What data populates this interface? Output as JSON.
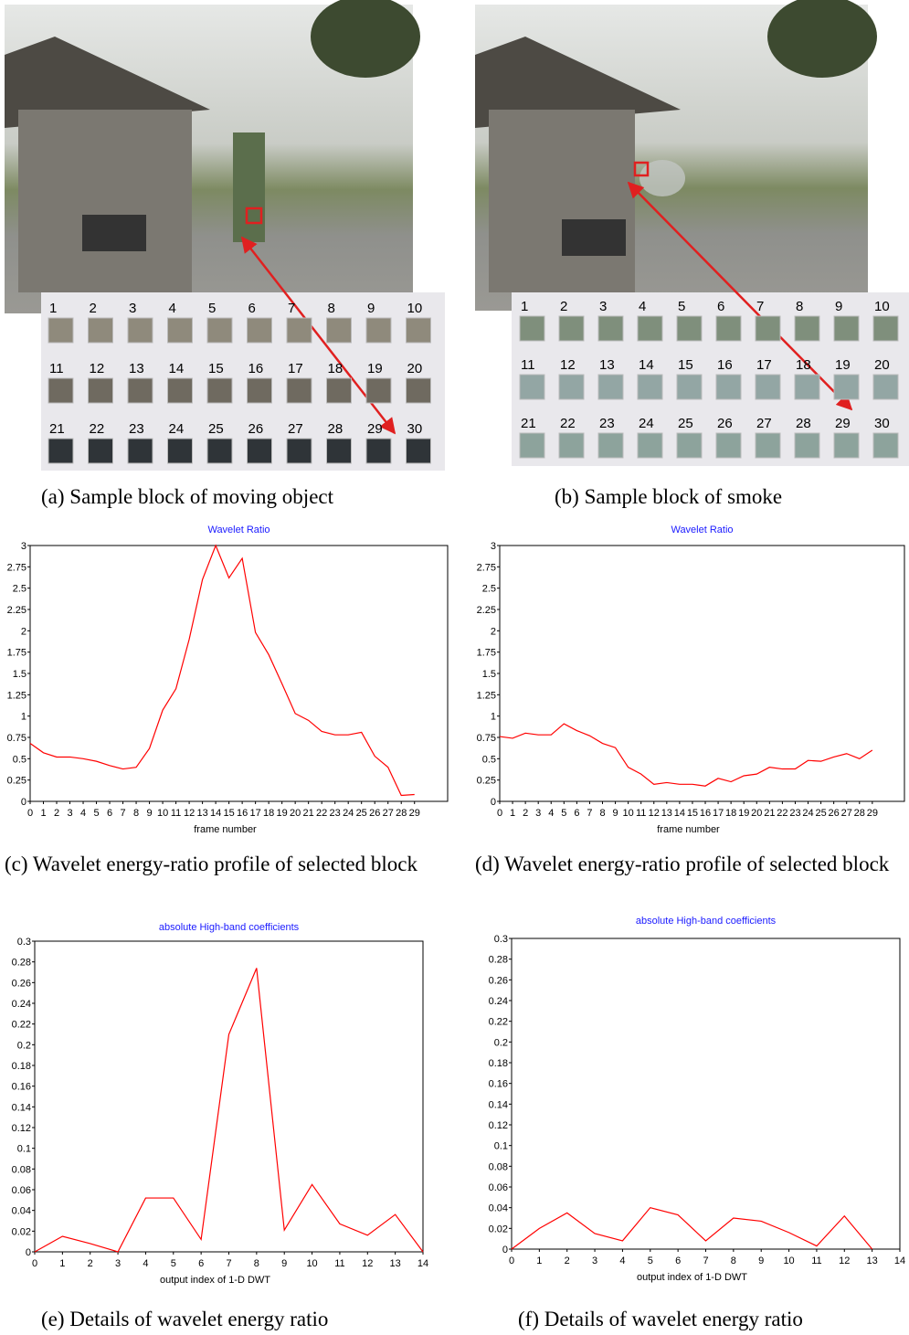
{
  "chart_data": [
    {
      "type": "line",
      "title": "Wavelet Ratio",
      "x_label": "frame number",
      "x": [
        0,
        1,
        2,
        3,
        4,
        5,
        6,
        7,
        8,
        9,
        10,
        11,
        12,
        13,
        14,
        15,
        16,
        17,
        18,
        19,
        20,
        21,
        22,
        23,
        24,
        25,
        26,
        27,
        28,
        29
      ],
      "series": [
        {
          "color": "#ff0000",
          "values": [
            0.68,
            0.57,
            0.52,
            0.52,
            0.5,
            0.47,
            0.42,
            0.38,
            0.4,
            0.62,
            1.07,
            1.32,
            1.9,
            2.6,
            3.0,
            2.62,
            2.85,
            1.98,
            1.72,
            1.38,
            1.03,
            0.95,
            0.82,
            0.78,
            0.78,
            0.81,
            0.53,
            0.4,
            0.07,
            0.08
          ]
        }
      ],
      "xlim": [
        0,
        31.5
      ],
      "xticks": [
        0,
        1,
        2,
        3,
        4,
        5,
        6,
        7,
        8,
        9,
        10,
        11,
        12,
        13,
        14,
        15,
        16,
        17,
        18,
        19,
        20,
        21,
        22,
        23,
        24,
        25,
        26,
        27,
        28,
        29
      ],
      "ylim": [
        0,
        3
      ],
      "yticks": [
        0,
        0.25,
        0.5,
        0.75,
        1,
        1.25,
        1.5,
        1.75,
        2,
        2.25,
        2.5,
        2.75,
        3
      ]
    },
    {
      "type": "line",
      "title": "Wavelet Ratio",
      "x_label": "frame number",
      "x": [
        0,
        1,
        2,
        3,
        4,
        5,
        6,
        7,
        8,
        9,
        10,
        11,
        12,
        13,
        14,
        15,
        16,
        17,
        18,
        19,
        20,
        21,
        22,
        23,
        24,
        25,
        26,
        27,
        28,
        29
      ],
      "series": [
        {
          "color": "#ff0000",
          "values": [
            0.76,
            0.74,
            0.8,
            0.78,
            0.78,
            0.91,
            0.83,
            0.77,
            0.68,
            0.63,
            0.4,
            0.32,
            0.2,
            0.22,
            0.2,
            0.2,
            0.18,
            0.27,
            0.23,
            0.3,
            0.32,
            0.4,
            0.38,
            0.38,
            0.48,
            0.47,
            0.52,
            0.56,
            0.5,
            0.6
          ]
        }
      ],
      "xlim": [
        0,
        31.5
      ],
      "xticks": [
        0,
        1,
        2,
        3,
        4,
        5,
        6,
        7,
        8,
        9,
        10,
        11,
        12,
        13,
        14,
        15,
        16,
        17,
        18,
        19,
        20,
        21,
        22,
        23,
        24,
        25,
        26,
        27,
        28,
        29
      ],
      "ylim": [
        0,
        3
      ],
      "yticks": [
        0,
        0.25,
        0.5,
        0.75,
        1,
        1.25,
        1.5,
        1.75,
        2,
        2.25,
        2.5,
        2.75,
        3
      ]
    },
    {
      "type": "line",
      "title": "absolute High-band coefficients",
      "x_label": "output index of 1-D DWT",
      "x": [
        0,
        1,
        2,
        3,
        4,
        5,
        6,
        7,
        8,
        9,
        10,
        11,
        12,
        13,
        14
      ],
      "series": [
        {
          "color": "#ff0000",
          "values": [
            0,
            0.015,
            0.008,
            0,
            0.052,
            0.052,
            0.012,
            0.21,
            0.274,
            0.021,
            0.065,
            0.027,
            0.016,
            0.036,
            0
          ]
        }
      ],
      "xlim": [
        0,
        14
      ],
      "xticks": [
        0,
        1,
        2,
        3,
        4,
        5,
        6,
        7,
        8,
        9,
        10,
        11,
        12,
        13,
        14
      ],
      "ylim": [
        0,
        0.3
      ],
      "yticks": [
        0,
        0.02,
        0.04,
        0.06,
        0.08,
        0.1,
        0.12,
        0.14,
        0.16,
        0.18,
        0.2,
        0.22,
        0.24,
        0.26,
        0.28,
        0.3
      ]
    },
    {
      "type": "line",
      "title": "absolute High-band coefficients",
      "x_label": "output index of 1-D DWT",
      "x": [
        0,
        1,
        2,
        3,
        4,
        5,
        6,
        7,
        8,
        9,
        10,
        11,
        12,
        13
      ],
      "series": [
        {
          "color": "#ff0000",
          "values": [
            0,
            0.02,
            0.035,
            0.015,
            0.008,
            0.04,
            0.033,
            0.008,
            0.03,
            0.027,
            0.016,
            0.003,
            0.032,
            0
          ]
        }
      ],
      "xlim": [
        0,
        14
      ],
      "xticks": [
        0,
        1,
        2,
        3,
        4,
        5,
        6,
        7,
        8,
        9,
        10,
        11,
        12,
        13,
        14
      ],
      "ylim": [
        0,
        0.3
      ],
      "yticks": [
        0,
        0.02,
        0.04,
        0.06,
        0.08,
        0.1,
        0.12,
        0.14,
        0.16,
        0.18,
        0.2,
        0.22,
        0.24,
        0.26,
        0.28,
        0.3
      ]
    }
  ],
  "photos": [
    {
      "block_labels": [
        1,
        2,
        3,
        4,
        5,
        6,
        7,
        8,
        9,
        10,
        11,
        12,
        13,
        14,
        15,
        16,
        17,
        18,
        19,
        20,
        21,
        22,
        23,
        24,
        25,
        26,
        27,
        28,
        29,
        30
      ]
    },
    {
      "block_labels": [
        1,
        2,
        3,
        4,
        5,
        6,
        7,
        8,
        9,
        10,
        11,
        12,
        13,
        14,
        15,
        16,
        17,
        18,
        19,
        20,
        21,
        22,
        23,
        24,
        25,
        26,
        27,
        28,
        29,
        30
      ]
    }
  ],
  "captions": [
    "(a) Sample block of moving object",
    "(b) Sample block of smoke",
    "(c) Wavelet energy-ratio profile of selected block",
    "(d) Wavelet energy-ratio profile of selected block",
    "(e) Details of wavelet energy ratio",
    "(f) Details of wavelet energy ratio"
  ]
}
